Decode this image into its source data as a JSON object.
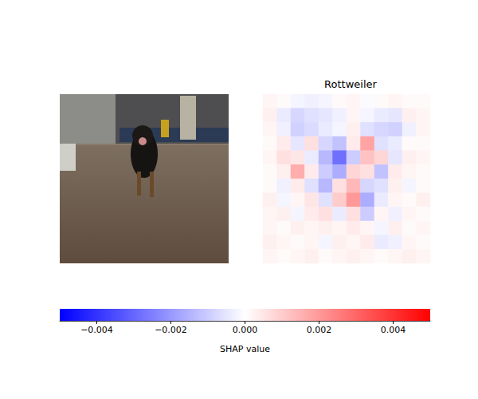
{
  "chart_data": {
    "type": "heatmap",
    "title": "Rottweiler",
    "tick_labels": false,
    "cells": [
      [
        0.0002,
        0.0001,
        -0.0002,
        -0.0003,
        -0.0002,
        0.0001,
        0.0002,
        -0.0001,
        0.0001,
        0.0002,
        0.0001,
        0.0001
      ],
      [
        0.0003,
        -0.0004,
        -0.0008,
        -0.0006,
        -0.0005,
        -0.0003,
        0.0002,
        -0.0002,
        -0.0004,
        -0.0005,
        0.0003,
        0.0002
      ],
      [
        0.0002,
        -0.0003,
        -0.0009,
        -0.0007,
        -0.0004,
        -0.0002,
        0.0003,
        -0.0006,
        -0.0008,
        -0.0009,
        -0.0003,
        0.0002
      ],
      [
        0.0001,
        0.0004,
        -0.0005,
        0.0006,
        -0.0008,
        -0.0012,
        0.0004,
        0.0018,
        -0.0006,
        -0.0004,
        0.0001,
        0.0001
      ],
      [
        0.0002,
        0.0006,
        0.0005,
        -0.0004,
        -0.0014,
        -0.0028,
        -0.001,
        0.0012,
        0.0008,
        -0.0005,
        0.0003,
        0.0002
      ],
      [
        0.0001,
        0.0003,
        0.0016,
        0.0004,
        -0.001,
        -0.0016,
        0.0008,
        0.0006,
        -0.0012,
        0.0004,
        0.0002,
        0.0001
      ],
      [
        0.0001,
        -0.0003,
        0.0004,
        -0.0006,
        -0.0014,
        0.0006,
        0.0014,
        -0.0008,
        -0.0006,
        0.0003,
        -0.0002,
        0.0001
      ],
      [
        0.0003,
        -0.0002,
        0.0002,
        0.0005,
        -0.0006,
        0.001,
        0.002,
        -0.0016,
        -0.0004,
        0.0002,
        0.0001,
        0.0003
      ],
      [
        0.0002,
        0.0003,
        -0.0002,
        0.0004,
        0.0006,
        -0.0004,
        0.0006,
        -0.001,
        0.0002,
        -0.0003,
        0.0002,
        0.0001
      ],
      [
        0.0002,
        0.0001,
        0.0003,
        0.0002,
        0.0003,
        0.0002,
        0.0004,
        0.0002,
        -0.0002,
        0.0003,
        0.0001,
        0.0002
      ],
      [
        0.0003,
        0.0002,
        0.0001,
        0.0002,
        -0.0002,
        0.0003,
        0.0002,
        0.0004,
        -0.0004,
        -0.0003,
        0.0002,
        0.0001
      ],
      [
        0.0002,
        0.0001,
        0.0002,
        0.0003,
        0.0001,
        0.0002,
        0.0003,
        0.0002,
        0.0001,
        0.0002,
        0.0003,
        0.0002
      ]
    ],
    "colorbar": {
      "label": "SHAP value",
      "range": [
        -0.005,
        0.005
      ],
      "ticks": [
        {
          "value": -0.004,
          "label": "−0.004"
        },
        {
          "value": -0.002,
          "label": "−0.002"
        },
        {
          "value": 0,
          "label": "0.000"
        },
        {
          "value": 0.002,
          "label": "0.002"
        },
        {
          "value": 0.004,
          "label": "0.004"
        }
      ]
    }
  }
}
